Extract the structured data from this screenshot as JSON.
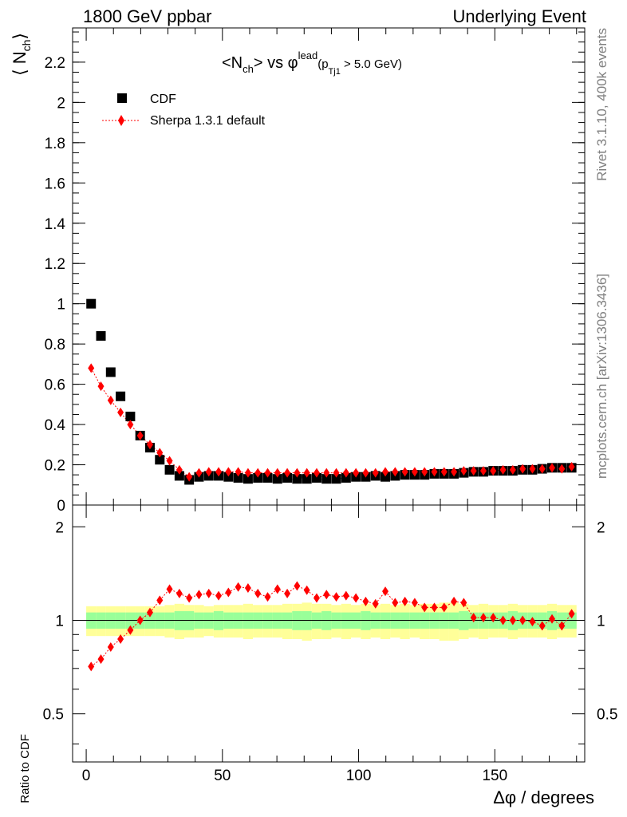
{
  "header": {
    "left": "1800 GeV ppbar",
    "right": "Underlying Event"
  },
  "side_labels": {
    "rivet": "Rivet 3.1.10,  400k events",
    "mcplots": "mcplots.cern.ch [arXiv:1306.3436]"
  },
  "watermark": "mcplots.cern.ch",
  "chart_data": [
    {
      "type": "scatter",
      "panel": "main",
      "title_parts": {
        "pre": "<N",
        "ch": "ch",
        "mid": "> vs ",
        "phi": "φ",
        "lead": "lead",
        "open": "(p",
        "tj1": "Tj1",
        "cut": " > 5.0 GeV)"
      },
      "ylabel": "⟨ N",
      "ylabel_sub": "ch",
      "ylabel_close": "⟩",
      "xlim": [
        -5,
        183
      ],
      "ylim": [
        0,
        2.37
      ],
      "yticks": [
        0,
        0.2,
        0.4,
        0.6,
        0.8,
        1,
        1.2,
        1.4,
        1.6,
        1.8,
        2,
        2.2
      ],
      "ytick_labels": [
        "0",
        "0.2",
        "0.4",
        "0.6",
        "0.8",
        "1",
        "1.2",
        "1.4",
        "1.6",
        "1.8",
        "2",
        "2.2"
      ],
      "legend_position": "top-left",
      "x": [
        1.8,
        5.4,
        9.0,
        12.6,
        16.2,
        19.8,
        23.4,
        27.0,
        30.6,
        34.2,
        37.8,
        41.4,
        45.0,
        48.6,
        52.2,
        55.8,
        59.4,
        63.0,
        66.6,
        70.2,
        73.8,
        77.4,
        81.0,
        84.6,
        88.2,
        91.8,
        95.4,
        99.0,
        102.6,
        106.2,
        109.8,
        113.4,
        117.0,
        120.6,
        124.2,
        127.8,
        131.4,
        135.0,
        138.6,
        142.2,
        145.8,
        149.4,
        153.0,
        156.6,
        160.2,
        163.8,
        167.4,
        171.0,
        174.6,
        178.2
      ],
      "series": [
        {
          "name": "CDF",
          "color": "#000000",
          "marker": "square",
          "values": [
            1.0,
            0.84,
            0.66,
            0.54,
            0.44,
            0.345,
            0.285,
            0.225,
            0.175,
            0.145,
            0.125,
            0.14,
            0.145,
            0.145,
            0.14,
            0.135,
            0.13,
            0.135,
            0.135,
            0.13,
            0.135,
            0.13,
            0.13,
            0.135,
            0.13,
            0.13,
            0.135,
            0.14,
            0.14,
            0.145,
            0.14,
            0.145,
            0.15,
            0.15,
            0.15,
            0.155,
            0.155,
            0.155,
            0.16,
            0.165,
            0.165,
            0.17,
            0.17,
            0.17,
            0.175,
            0.175,
            0.18,
            0.185,
            0.185,
            0.185
          ]
        },
        {
          "name": "Sherpa 1.3.1 default",
          "color": "#ff0000",
          "marker": "diamond",
          "line": "dotted",
          "values": [
            0.68,
            0.59,
            0.52,
            0.46,
            0.4,
            0.345,
            0.3,
            0.26,
            0.22,
            0.175,
            0.14,
            0.16,
            0.165,
            0.165,
            0.165,
            0.165,
            0.16,
            0.16,
            0.16,
            0.16,
            0.16,
            0.16,
            0.16,
            0.16,
            0.16,
            0.16,
            0.16,
            0.16,
            0.16,
            0.16,
            0.165,
            0.165,
            0.165,
            0.165,
            0.165,
            0.165,
            0.165,
            0.165,
            0.17,
            0.17,
            0.17,
            0.17,
            0.175,
            0.175,
            0.18,
            0.18,
            0.18,
            0.185,
            0.18,
            0.19
          ]
        }
      ]
    },
    {
      "type": "line",
      "panel": "ratio",
      "ylabel": "Ratio to CDF",
      "xlabel": "Δφ / degrees",
      "xlim": [
        -5,
        183
      ],
      "ylim": [
        0.35,
        2.35
      ],
      "log_y": true,
      "xticks": [
        0,
        50,
        100,
        150
      ],
      "xtick_labels": [
        "0",
        "50",
        "100",
        "150"
      ],
      "yticks": [
        0.5,
        1,
        2
      ],
      "ytick_labels": [
        "0.5",
        "1",
        "2"
      ],
      "x": [
        1.8,
        5.4,
        9.0,
        12.6,
        16.2,
        19.8,
        23.4,
        27.0,
        30.6,
        34.2,
        37.8,
        41.4,
        45.0,
        48.6,
        52.2,
        55.8,
        59.4,
        63.0,
        66.6,
        70.2,
        73.8,
        77.4,
        81.0,
        84.6,
        88.2,
        91.8,
        95.4,
        99.0,
        102.6,
        106.2,
        109.8,
        113.4,
        117.0,
        120.6,
        124.2,
        127.8,
        131.4,
        135.0,
        138.6,
        142.2,
        145.8,
        149.4,
        153.0,
        156.6,
        160.2,
        163.8,
        167.4,
        171.0,
        174.6,
        178.2
      ],
      "band_inner": [
        0.06,
        0.06,
        0.06,
        0.06,
        0.06,
        0.06,
        0.06,
        0.06,
        0.06,
        0.07,
        0.07,
        0.06,
        0.06,
        0.07,
        0.06,
        0.06,
        0.06,
        0.06,
        0.06,
        0.06,
        0.06,
        0.07,
        0.07,
        0.06,
        0.07,
        0.06,
        0.06,
        0.06,
        0.07,
        0.06,
        0.06,
        0.06,
        0.06,
        0.06,
        0.06,
        0.06,
        0.06,
        0.06,
        0.07,
        0.06,
        0.06,
        0.06,
        0.06,
        0.07,
        0.06,
        0.06,
        0.06,
        0.07,
        0.06,
        0.06
      ],
      "band_outer": [
        0.11,
        0.11,
        0.11,
        0.11,
        0.11,
        0.11,
        0.11,
        0.11,
        0.12,
        0.13,
        0.12,
        0.12,
        0.11,
        0.12,
        0.12,
        0.12,
        0.13,
        0.12,
        0.12,
        0.12,
        0.13,
        0.13,
        0.14,
        0.13,
        0.13,
        0.12,
        0.13,
        0.12,
        0.13,
        0.12,
        0.13,
        0.12,
        0.13,
        0.12,
        0.13,
        0.13,
        0.14,
        0.14,
        0.13,
        0.12,
        0.13,
        0.12,
        0.12,
        0.13,
        0.12,
        0.12,
        0.12,
        0.13,
        0.12,
        0.12
      ],
      "series": [
        {
          "name": "Sherpa 1.3.1 default",
          "color": "#ff0000",
          "marker": "diamond",
          "line": "dotted",
          "values": [
            0.71,
            0.75,
            0.82,
            0.87,
            0.93,
            1.0,
            1.06,
            1.16,
            1.26,
            1.22,
            1.18,
            1.21,
            1.22,
            1.2,
            1.23,
            1.28,
            1.27,
            1.22,
            1.19,
            1.26,
            1.22,
            1.29,
            1.25,
            1.18,
            1.21,
            1.19,
            1.2,
            1.18,
            1.15,
            1.13,
            1.24,
            1.14,
            1.15,
            1.14,
            1.1,
            1.1,
            1.1,
            1.15,
            1.14,
            1.02,
            1.02,
            1.02,
            1.0,
            1.0,
            1.0,
            0.99,
            0.96,
            1.01,
            0.96,
            1.05
          ]
        }
      ]
    }
  ]
}
